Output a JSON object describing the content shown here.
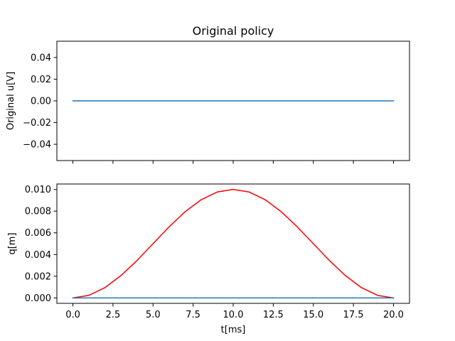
{
  "chart_data": [
    {
      "type": "line",
      "title": "Original policy",
      "xlabel": "",
      "ylabel": "Original u[V]",
      "xlim": [
        -1.0,
        21.0
      ],
      "ylim": [
        -0.055,
        0.055
      ],
      "xticks": [
        0.0,
        2.5,
        5.0,
        7.5,
        10.0,
        12.5,
        15.0,
        17.5,
        20.0
      ],
      "xtick_labels_visible": false,
      "yticks": [
        -0.04,
        -0.02,
        0.0,
        0.02,
        0.04
      ],
      "ytick_labels": [
        "−0.04",
        "−0.02",
        "0.00",
        "0.02",
        "0.04"
      ],
      "grid": false,
      "series": [
        {
          "color": "#1f77b4",
          "x": [
            0,
            20
          ],
          "y": [
            0.0,
            0.0
          ]
        }
      ]
    },
    {
      "type": "line",
      "title": "",
      "xlabel": "t[ms]",
      "ylabel": "q[m]",
      "xlim": [
        -1.0,
        21.0
      ],
      "ylim": [
        -0.0005,
        0.0105
      ],
      "xticks": [
        0.0,
        2.5,
        5.0,
        7.5,
        10.0,
        12.5,
        15.0,
        17.5,
        20.0
      ],
      "xtick_labels": [
        "0.0",
        "2.5",
        "5.0",
        "7.5",
        "10.0",
        "12.5",
        "15.0",
        "17.5",
        "20.0"
      ],
      "yticks": [
        0.0,
        0.002,
        0.004,
        0.006,
        0.008,
        0.01
      ],
      "ytick_labels": [
        "0.000",
        "0.002",
        "0.004",
        "0.006",
        "0.008",
        "0.010"
      ],
      "grid": false,
      "series": [
        {
          "color": "#ff0000",
          "x": [
            0,
            1,
            2,
            3,
            4,
            5,
            6,
            7,
            8,
            9,
            10,
            11,
            12,
            13,
            14,
            15,
            16,
            17,
            18,
            19,
            20
          ],
          "y": [
            0.0,
            0.00024,
            0.00095,
            0.00206,
            0.00345,
            0.005,
            0.00655,
            0.00794,
            0.00905,
            0.00976,
            0.01,
            0.00976,
            0.00905,
            0.00794,
            0.00655,
            0.005,
            0.00345,
            0.00206,
            0.00095,
            0.00024,
            0.0
          ]
        },
        {
          "color": "#1f77b4",
          "x": [
            0,
            20
          ],
          "y": [
            0.0,
            0.0
          ]
        }
      ]
    }
  ]
}
